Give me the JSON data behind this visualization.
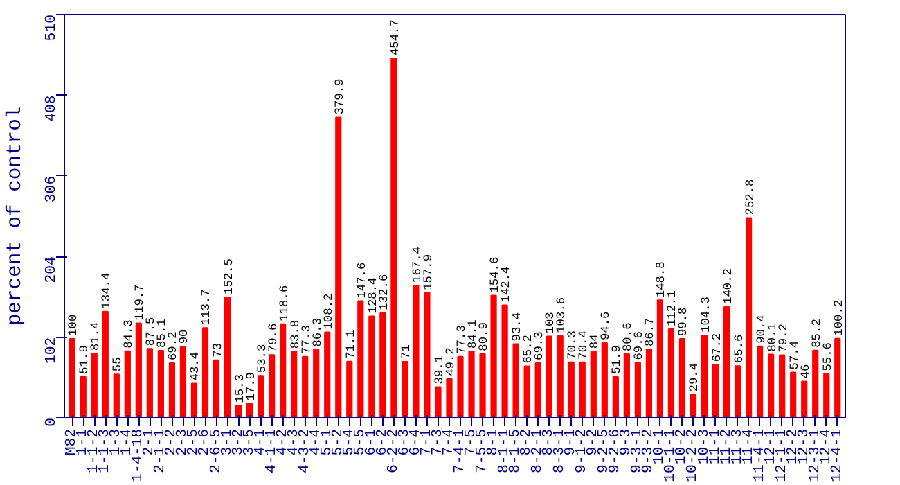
{
  "chart_data": {
    "type": "bar",
    "ylabel": "percent of control",
    "categories": [
      "M82",
      "1-1",
      "1-1-2",
      "1-1-3",
      "1-3",
      "1-4",
      "1-4-18",
      "2-1",
      "2-1-1",
      "2-2",
      "2-3",
      "2-5",
      "2-6",
      "2-6-5",
      "3-1",
      "3-2",
      "3-5",
      "4-1",
      "4-1-1",
      "4-2",
      "4-3",
      "4-3-2",
      "4-4",
      "5-1",
      "5-2",
      "5-4",
      "5-5",
      "6-1",
      "6-2",
      "6-2-2",
      "6-3",
      "6-4",
      "7-1",
      "7-3",
      "7-4",
      "7-4-1",
      "7-5",
      "7-5-5",
      "8-1",
      "8-1-1",
      "8-1-5",
      "8-2",
      "8-2-1",
      "8-3",
      "8-3-1",
      "9-1",
      "9-1-2",
      "9-2",
      "9-2-5",
      "9-2-6",
      "9-3",
      "9-3-1",
      "9-3-2",
      "10-1",
      "10-1-1",
      "10-2",
      "10-2-2",
      "10-3",
      "11-1",
      "11-2",
      "11-3",
      "11-4",
      "11-4-1",
      "12-1",
      "12-1-1",
      "12-2",
      "12-3",
      "12-3-1",
      "12-4",
      "12-4-1"
    ],
    "values": [
      100,
      51.9,
      81.4,
      134.4,
      55,
      84.3,
      119.7,
      87.5,
      85.1,
      69.2,
      90,
      43.4,
      113.7,
      73,
      152.5,
      15.3,
      17.9,
      53.3,
      79.6,
      118.6,
      83.8,
      77.3,
      86.3,
      108.2,
      379.9,
      71.1,
      147.6,
      128.4,
      132.6,
      454.7,
      71,
      167.4,
      157.9,
      39.1,
      49.2,
      77.3,
      84.1,
      80.9,
      154.6,
      142.4,
      93.4,
      65.2,
      69.3,
      103,
      103.6,
      70.3,
      70.4,
      84,
      94.6,
      51.9,
      80.6,
      69.6,
      86.7,
      148.8,
      112.1,
      99.8,
      29.4,
      104.3,
      67.2,
      140.2,
      65.6,
      252.8,
      90.4,
      80.1,
      79.2,
      57.4,
      46,
      85.2,
      55.6,
      100.2
    ],
    "color": "#ff0000",
    "data_labels": true,
    "ylim": [
      0,
      510
    ],
    "yticks": [
      0,
      102,
      204,
      306,
      408,
      510
    ],
    "grid": false
  }
}
